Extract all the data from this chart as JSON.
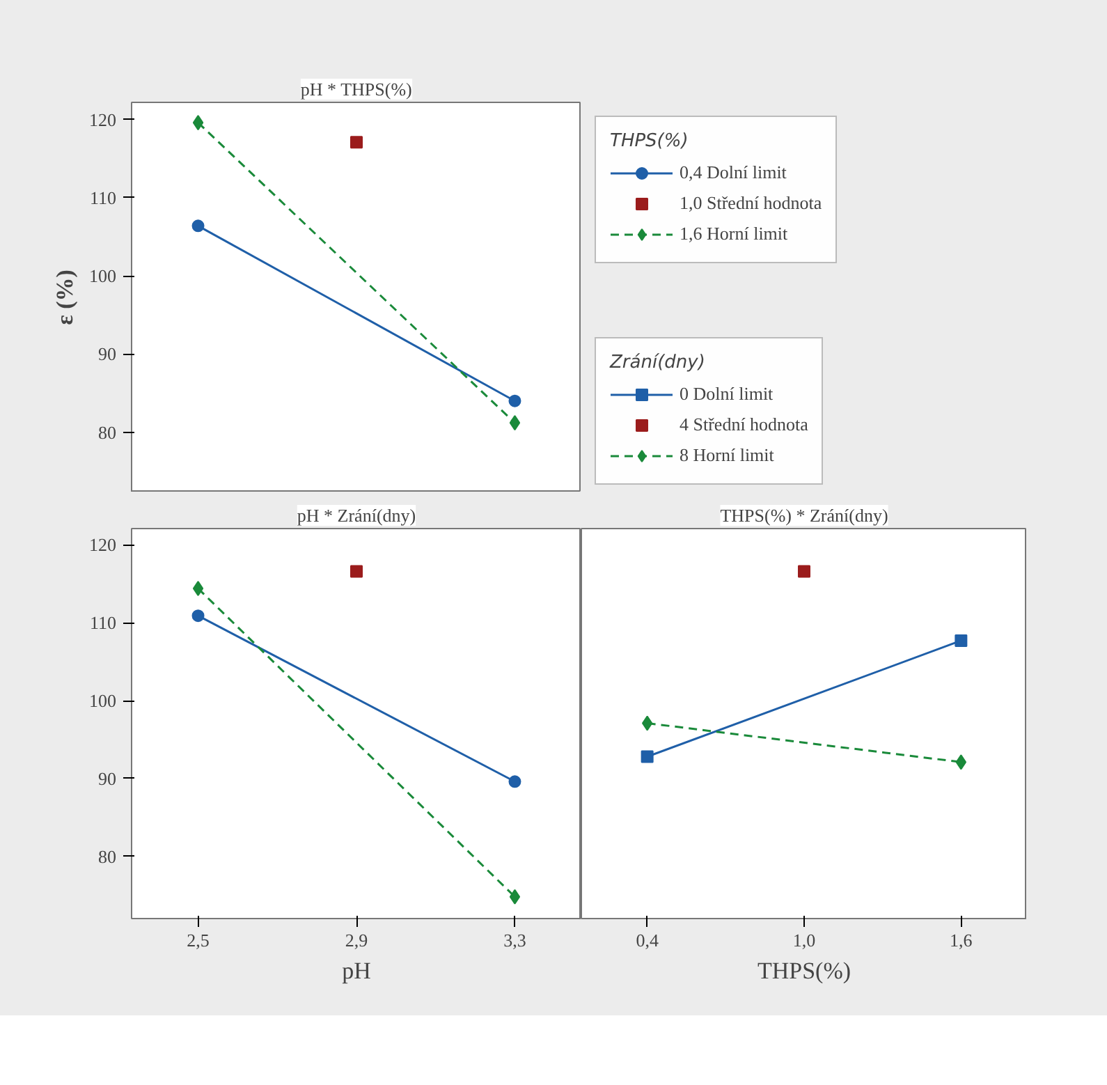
{
  "chart_data": [
    {
      "type": "line",
      "title": "pH * THPS(%)",
      "ylabel": "ε (%)",
      "categories": [
        "2,5",
        "2,9",
        "3,3"
      ],
      "ylim": [
        72.3,
        122.2
      ],
      "yticks": [
        80,
        90,
        100,
        110,
        120
      ],
      "tick_labels": "y",
      "grid": false,
      "legend": "right",
      "legend_title": "THPS(%)",
      "series": [
        {
          "name": "0,4 Dolní limit",
          "color": "#1f5fa8",
          "marker": "circle",
          "line_style": "solid",
          "values": [
            106.4,
            null,
            84.0
          ]
        },
        {
          "name": "1,0 Střední hodnota",
          "type": "scatter",
          "color": "#9b1c1c",
          "marker": "square",
          "values": [
            null,
            117.1,
            null
          ]
        },
        {
          "name": "1,6 Horní limit",
          "color": "#1a8a3a",
          "marker": "diamond",
          "line_style": "dashed",
          "values": [
            119.6,
            null,
            81.2
          ]
        }
      ]
    },
    {
      "type": "line",
      "title": "pH * Zrání(dny)",
      "xlabel": "pH",
      "categories": [
        "2,5",
        "2,9",
        "3,3"
      ],
      "ylim": [
        72.0,
        122.1
      ],
      "yticks": [
        80,
        90,
        100,
        110,
        120
      ],
      "grid": false,
      "series": [
        {
          "color": "#1f5fa8",
          "marker": "circle",
          "line_style": "solid",
          "values": [
            110.9,
            null,
            89.6
          ]
        },
        {
          "type": "scatter",
          "color": "#9b1c1c",
          "marker": "square",
          "values": [
            null,
            116.6,
            null
          ]
        },
        {
          "color": "#1a8a3a",
          "marker": "diamond",
          "line_style": "dashed",
          "values": [
            114.4,
            null,
            74.8
          ]
        }
      ]
    },
    {
      "type": "line",
      "title": "THPS(%) * Zrání(dny)",
      "xlabel": "THPS(%)",
      "categories": [
        "0,4",
        "1,0",
        "1,6"
      ],
      "ylim": [
        72.0,
        122.1
      ],
      "yticks": [
        80,
        90,
        100,
        110,
        120
      ],
      "tick_labels": "x",
      "grid": false,
      "legend": "top",
      "legend_title": "Zrání(dny)",
      "series": [
        {
          "name": "0 Dolní limit",
          "color": "#1f5fa8",
          "marker": "square",
          "line_style": "solid",
          "values": [
            92.8,
            null,
            107.7
          ]
        },
        {
          "name": "4 Střední hodnota",
          "type": "scatter",
          "color": "#9b1c1c",
          "marker": "square",
          "values": [
            null,
            116.6,
            null
          ]
        },
        {
          "name": "8 Horní limit",
          "color": "#1a8a3a",
          "marker": "diamond",
          "line_style": "dashed",
          "values": [
            97.1,
            null,
            92.1
          ]
        }
      ]
    }
  ]
}
